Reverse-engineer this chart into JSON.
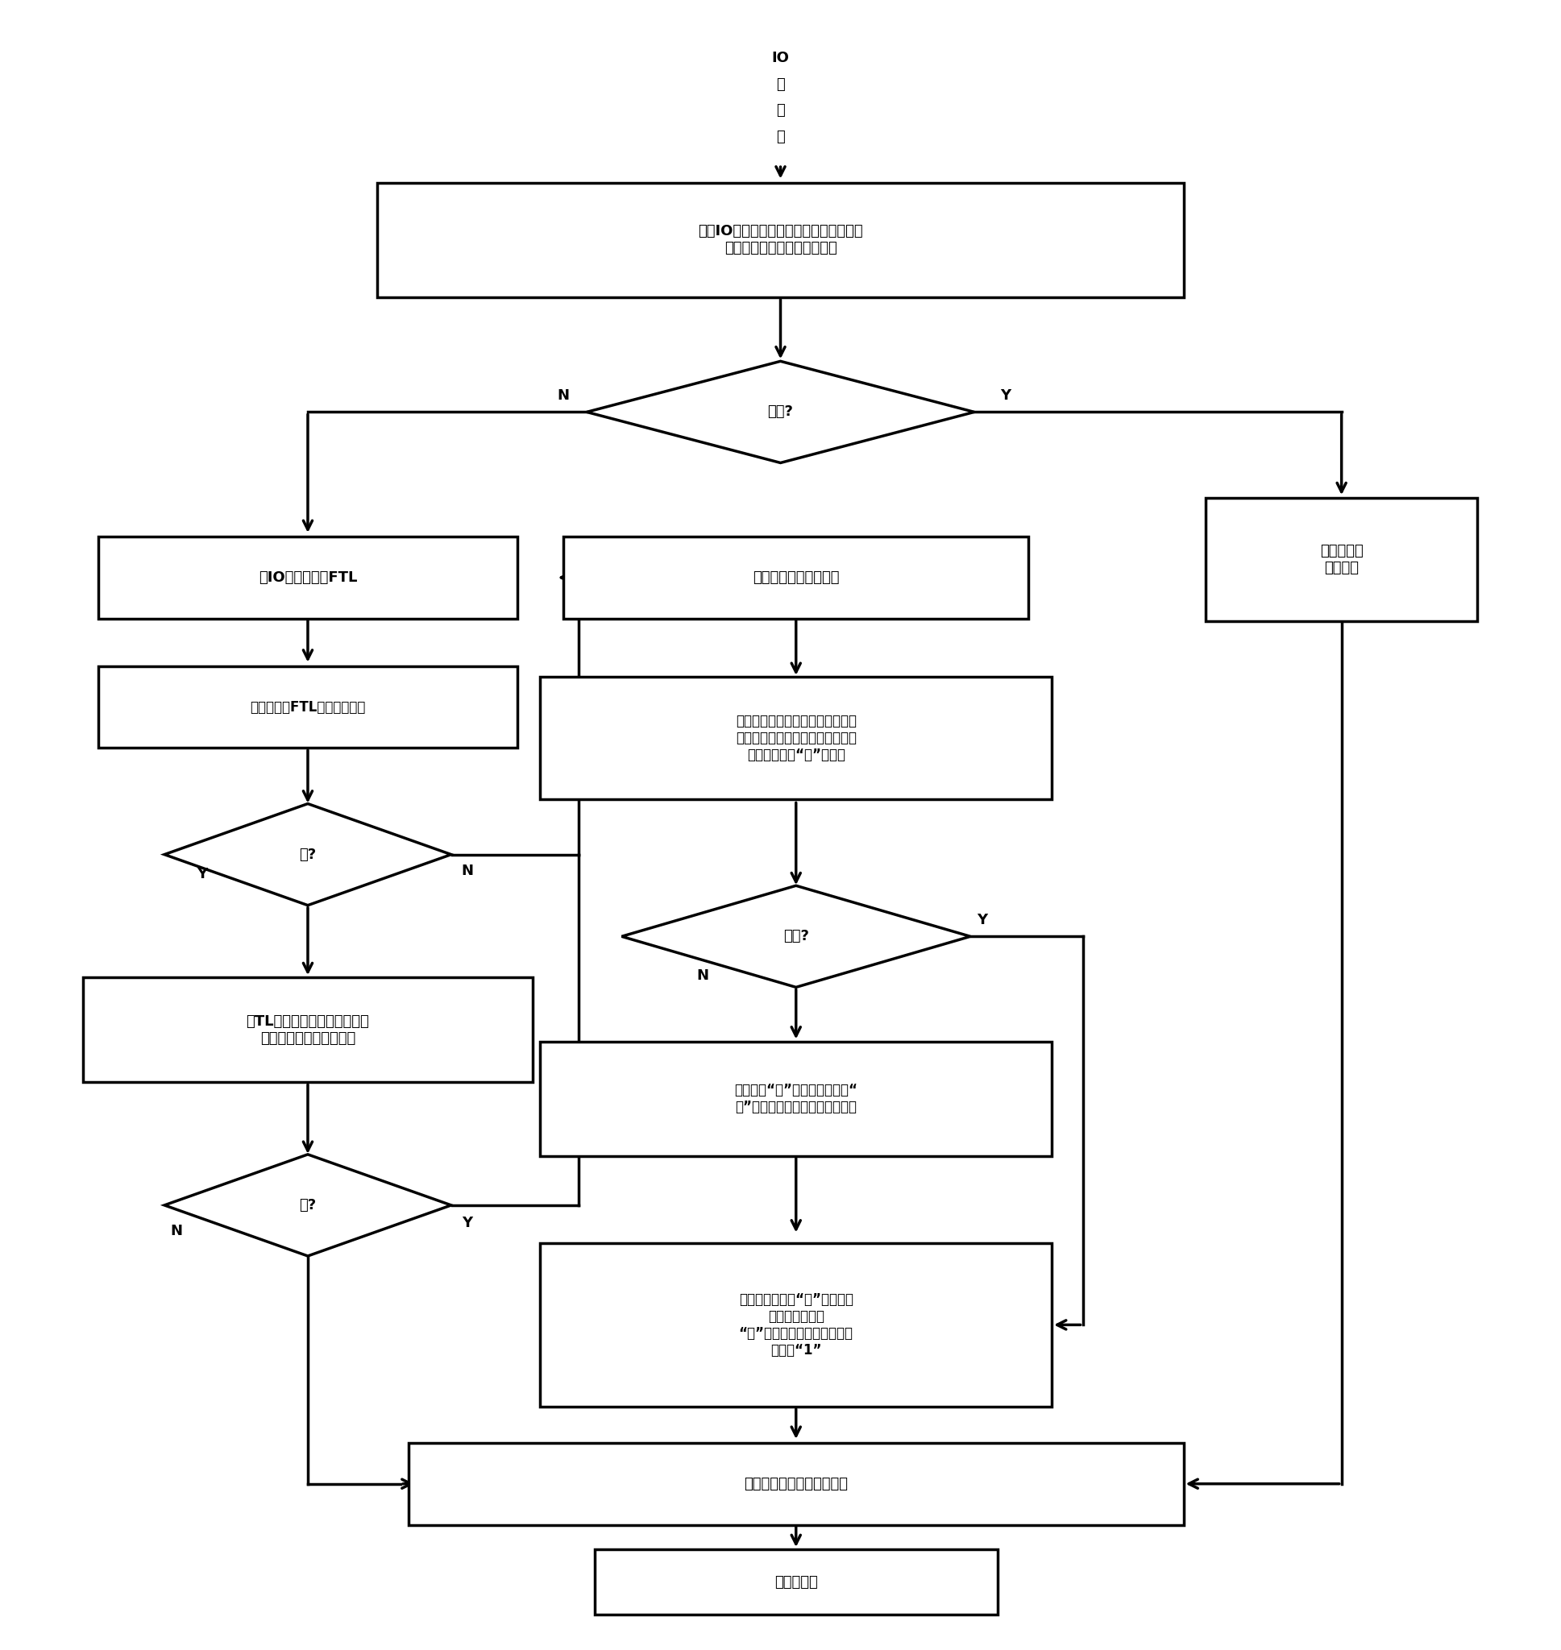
{
  "bg_color": "#ffffff",
  "fig_width": 19.37,
  "fig_height": 20.48,
  "lw": 2.5,
  "font_size": 13,
  "box1_text": "根据IO读请求的逻辑页号，判断该逻辑页\n号是否与页缓存中的某项命中",
  "diamond1_text": "命中?",
  "box2_text": "将IO读请求转发FTL",
  "box3_text": "判断是否有FTL发送的页数据",
  "diamond2_text": "有?",
  "box4_text": "仯TL接收读取的页数据，并判\n断页缓存是否有空闲空间",
  "diamond3_text": "有?",
  "box5_text": "将页数据存入页缓存中",
  "box6_text": "根据该页对应的物理块号查找物理\n块链表，并判断物理块链表是否包\n含该物理块的“脏”页链表",
  "diamond4_text": "包含?",
  "box7_text": "创建一个“脏”页链表，并将该“\n脏”页链表置于物理块链表的表头",
  "box8_text": "获取该物理块的“脏”页链表，\n并将该页添加进\n“脏”页链表的表头，并将表头\n标记为“1”",
  "box_cache_text": "从缓存中读\n出页数据",
  "box_return_text": "将获取的页数据返回给主机",
  "box_end_text": "读过程结束",
  "io_chars": [
    "IO",
    "读",
    "请",
    "求"
  ]
}
